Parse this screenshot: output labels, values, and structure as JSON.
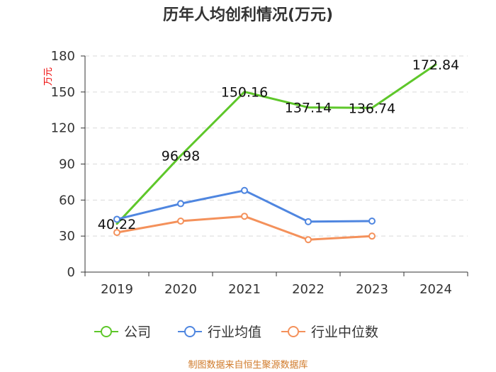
{
  "chart_data": {
    "type": "line",
    "title": "历年人均创利情况(万元)",
    "unit_label": "万元",
    "categories": [
      "2019",
      "2020",
      "2021",
      "2022",
      "2023",
      "2024"
    ],
    "ylim": [
      0,
      180
    ],
    "yticks": [
      0,
      30,
      60,
      90,
      120,
      150,
      180
    ],
    "grid": true,
    "legend_position": "bottom",
    "series": [
      {
        "name": "公司",
        "color": "#5ec72a",
        "values": [
          40.22,
          96.98,
          150.16,
          137.14,
          136.74,
          172.84
        ],
        "data_labels": [
          "40.22",
          "96.98",
          "150.16",
          "137.14",
          "136.74",
          "172.84"
        ],
        "markers": false
      },
      {
        "name": "行业均值",
        "color": "#4f86e0",
        "values": [
          44,
          57,
          68,
          42,
          42.5,
          null
        ],
        "markers": true
      },
      {
        "name": "行业中位数",
        "color": "#f4915b",
        "values": [
          33,
          42.5,
          46.5,
          27,
          30,
          null
        ],
        "markers": true
      }
    ]
  },
  "footer": {
    "source": "制图数据来自恒生聚源数据库"
  }
}
